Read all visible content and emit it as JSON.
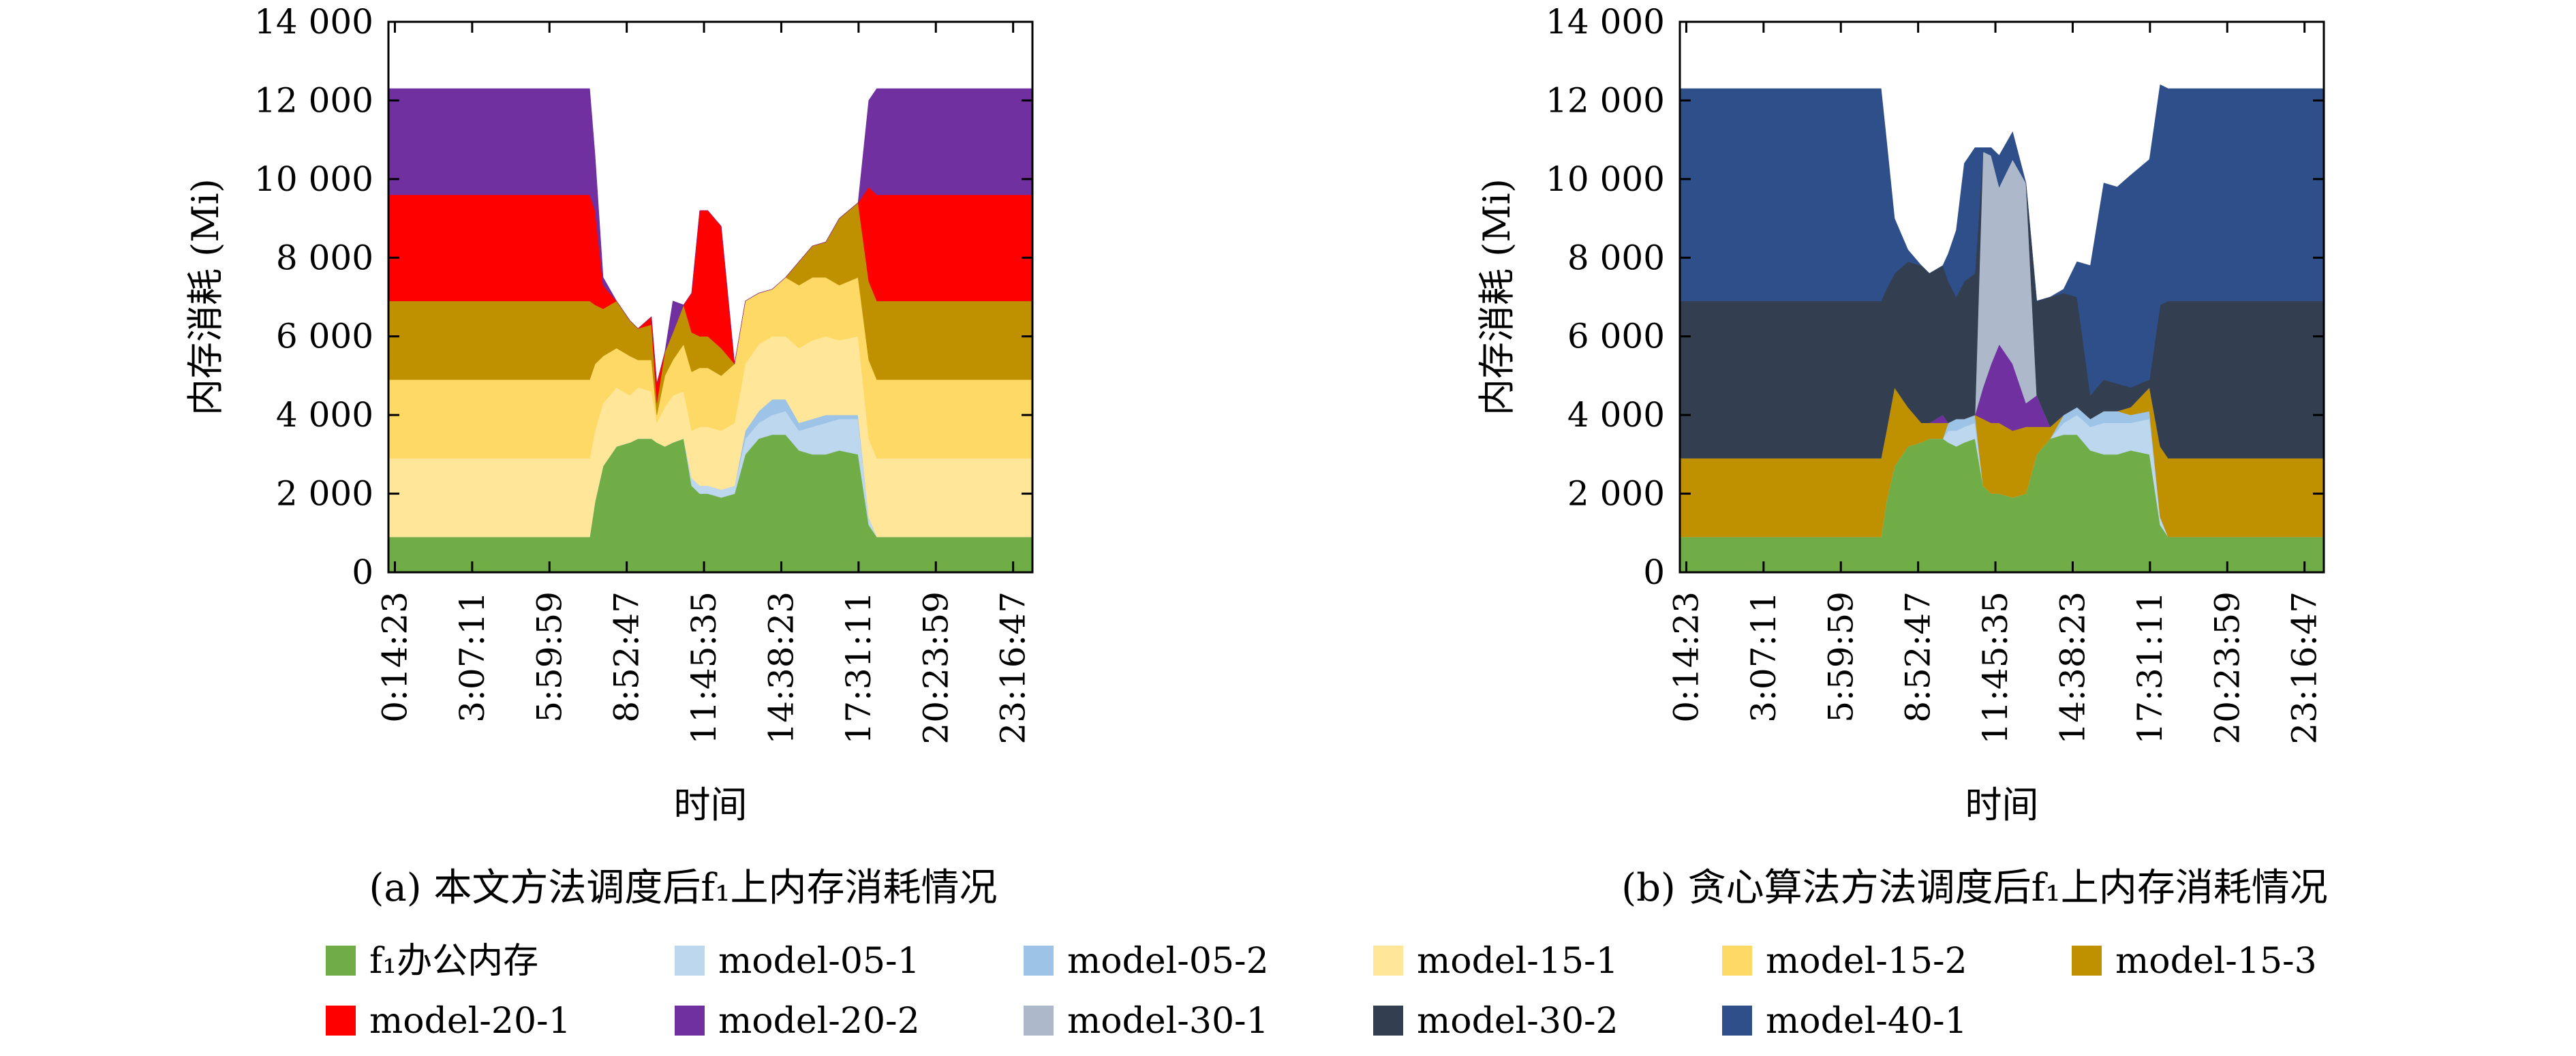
{
  "legend": [
    {
      "label": "f₁办公内存",
      "color": "#70ad47"
    },
    {
      "label": "model-05-1",
      "color": "#bdd7ee"
    },
    {
      "label": "model-05-2",
      "color": "#9dc3e6"
    },
    {
      "label": "model-15-1",
      "color": "#ffe699"
    },
    {
      "label": "model-15-2",
      "color": "#ffd966"
    },
    {
      "label": "model-15-3",
      "color": "#bf9000"
    },
    {
      "label": "model-20-1",
      "color": "#ff0000"
    },
    {
      "label": "model-20-2",
      "color": "#7030a0"
    },
    {
      "label": "model-30-1",
      "color": "#adb9ca"
    },
    {
      "label": "model-30-2",
      "color": "#333f50"
    },
    {
      "label": "model-40-1",
      "color": "#2f4f8a"
    }
  ],
  "chart_data": [
    {
      "type": "area",
      "stacked": true,
      "caption": "(a) 本文方法调度后f₁上内存消耗情况",
      "xlabel": "时间",
      "ylabel": "内存消耗 (Mi)",
      "ylim": [
        0,
        14000
      ],
      "yticks": [
        0,
        2000,
        4000,
        6000,
        8000,
        10000,
        12000,
        14000
      ],
      "ytick_labels": [
        "0",
        "2 000",
        "4 000",
        "6 000",
        "8 000",
        "10 000",
        "12 000",
        "14 000"
      ],
      "xlim": [
        0,
        24
      ],
      "xticks": [
        0.24,
        3.12,
        6.0,
        8.88,
        11.76,
        14.64,
        17.52,
        20.4,
        23.28
      ],
      "xtick_labels": [
        "0:14:23",
        "3:07:11",
        "5:59:59",
        "8:52:47",
        "11:45:35",
        "14:38:23",
        "17:31:11",
        "20:23:59",
        "23:16:47"
      ],
      "x": [
        0,
        7.5,
        7.7,
        8.0,
        8.5,
        9.0,
        9.3,
        9.8,
        10.0,
        10.3,
        10.6,
        11.0,
        11.3,
        11.6,
        11.9,
        12.4,
        12.9,
        13.3,
        13.8,
        14.3,
        14.8,
        15.3,
        15.8,
        16.3,
        16.8,
        17.5,
        17.9,
        18.2,
        24
      ],
      "series": [
        {
          "name": "f₁办公内存",
          "color": "#70ad47",
          "values": [
            900,
            900,
            1800,
            2700,
            3200,
            3300,
            3400,
            3400,
            3300,
            3200,
            3300,
            3400,
            2200,
            2000,
            2000,
            1900,
            2000,
            3000,
            3400,
            3500,
            3500,
            3100,
            3000,
            3000,
            3100,
            3000,
            1200,
            900,
            900
          ]
        },
        {
          "name": "model-05-1",
          "color": "#bdd7ee",
          "values": [
            0,
            0,
            0,
            0,
            0,
            0,
            0,
            0,
            0,
            0,
            0,
            0,
            200,
            200,
            200,
            200,
            200,
            400,
            400,
            500,
            600,
            500,
            700,
            800,
            800,
            900,
            200,
            0,
            0
          ]
        },
        {
          "name": "model-05-2",
          "color": "#9dc3e6",
          "values": [
            0,
            0,
            0,
            0,
            0,
            0,
            0,
            0,
            0,
            0,
            0,
            0,
            0,
            0,
            0,
            0,
            0,
            200,
            300,
            400,
            300,
            200,
            200,
            200,
            100,
            100,
            0,
            0,
            0
          ]
        },
        {
          "name": "model-15-1",
          "color": "#ffe699",
          "values": [
            2000,
            2000,
            1800,
            1600,
            1500,
            1200,
            1300,
            1200,
            500,
            1000,
            1200,
            1200,
            1200,
            1500,
            1500,
            1500,
            1600,
            1700,
            1700,
            1600,
            1600,
            1900,
            2000,
            2000,
            1900,
            2000,
            2000,
            2000,
            2000
          ]
        },
        {
          "name": "model-15-2",
          "color": "#ffd966",
          "values": [
            2000,
            2000,
            1700,
            1200,
            1000,
            1000,
            700,
            800,
            200,
            800,
            900,
            1200,
            1500,
            1500,
            1500,
            1400,
            1500,
            1600,
            1300,
            1200,
            1500,
            1600,
            1600,
            1500,
            1400,
            1500,
            2000,
            2000,
            2000
          ]
        },
        {
          "name": "model-15-3",
          "color": "#bf9000",
          "values": [
            2000,
            2000,
            1500,
            1200,
            1200,
            900,
            800,
            900,
            300,
            600,
            700,
            1000,
            1000,
            800,
            800,
            700,
            0,
            0,
            0,
            0,
            0,
            600,
            800,
            900,
            1700,
            1900,
            2000,
            2000,
            2000
          ]
        },
        {
          "name": "model-20-1",
          "color": "#ff0000",
          "values": [
            2700,
            2700,
            2400,
            600,
            0,
            0,
            0,
            200,
            500,
            0,
            0,
            0,
            1000,
            3200,
            3200,
            3100,
            0,
            0,
            0,
            0,
            0,
            0,
            0,
            0,
            0,
            0,
            2400,
            2700,
            2700
          ]
        },
        {
          "name": "model-20-2",
          "color": "#7030a0",
          "values": [
            2700,
            2700,
            1400,
            200,
            0,
            0,
            0,
            0,
            0,
            0,
            800,
            0,
            0,
            0,
            0,
            0,
            0,
            0,
            0,
            0,
            0,
            0,
            0,
            0,
            0,
            0,
            2200,
            2700,
            2700
          ]
        }
      ]
    },
    {
      "type": "area",
      "stacked": true,
      "caption": "(b) 贪心算法方法调度后f₁上内存消耗情况",
      "xlabel": "时间",
      "ylabel": "内存消耗 (Mi)",
      "ylim": [
        0,
        14000
      ],
      "yticks": [
        0,
        2000,
        4000,
        6000,
        8000,
        10000,
        12000,
        14000
      ],
      "ytick_labels": [
        "0",
        "2 000",
        "4 000",
        "6 000",
        "8 000",
        "10 000",
        "12 000",
        "14 000"
      ],
      "xlim": [
        0,
        24
      ],
      "xticks": [
        0.24,
        3.12,
        6.0,
        8.88,
        11.76,
        14.64,
        17.52,
        20.4,
        23.28
      ],
      "xtick_labels": [
        "0:14:23",
        "3:07:11",
        "5:59:59",
        "8:52:47",
        "11:45:35",
        "14:38:23",
        "17:31:11",
        "20:23:59",
        "23:16:47"
      ],
      "x": [
        0,
        7.5,
        7.7,
        8.0,
        8.5,
        9.0,
        9.3,
        9.8,
        10.0,
        10.3,
        10.6,
        11.0,
        11.3,
        11.6,
        11.9,
        12.4,
        12.9,
        13.3,
        13.8,
        14.3,
        14.8,
        15.3,
        15.8,
        16.3,
        16.8,
        17.5,
        17.9,
        18.2,
        24
      ],
      "series": [
        {
          "name": "f₁办公内存",
          "color": "#70ad47",
          "values": [
            900,
            900,
            1800,
            2700,
            3200,
            3300,
            3400,
            3400,
            3300,
            3200,
            3300,
            3400,
            2200,
            2000,
            2000,
            1900,
            2000,
            3000,
            3400,
            3500,
            3500,
            3100,
            3000,
            3000,
            3100,
            3000,
            1200,
            900,
            900
          ]
        },
        {
          "name": "model-05-1",
          "color": "#bdd7ee",
          "values": [
            0,
            0,
            0,
            0,
            0,
            0,
            0,
            0,
            300,
            400,
            400,
            400,
            0,
            0,
            0,
            0,
            0,
            0,
            0,
            300,
            500,
            600,
            800,
            800,
            700,
            900,
            200,
            0,
            0
          ]
        },
        {
          "name": "model-05-2",
          "color": "#9dc3e6",
          "values": [
            0,
            0,
            0,
            0,
            0,
            0,
            0,
            0,
            200,
            300,
            200,
            200,
            0,
            0,
            0,
            0,
            0,
            0,
            0,
            200,
            200,
            200,
            300,
            300,
            200,
            200,
            0,
            0,
            0
          ]
        },
        {
          "name": "model-15-3",
          "color": "#bf9000",
          "values": [
            2000,
            2000,
            1800,
            2000,
            1000,
            500,
            400,
            400,
            0,
            0,
            0,
            0,
            1700,
            1800,
            1800,
            1700,
            1700,
            700,
            300,
            0,
            0,
            0,
            0,
            0,
            200,
            600,
            1800,
            2000,
            2000
          ]
        },
        {
          "name": "model-20-2",
          "color": "#7030a0",
          "values": [
            0,
            0,
            0,
            0,
            0,
            0,
            0,
            200,
            0,
            0,
            0,
            0,
            800,
            1500,
            2000,
            1700,
            600,
            800,
            0,
            0,
            0,
            0,
            0,
            0,
            0,
            0,
            0,
            0,
            0
          ]
        },
        {
          "name": "model-30-1",
          "color": "#adb9ca",
          "values": [
            0,
            0,
            0,
            0,
            0,
            0,
            0,
            0,
            0,
            0,
            0,
            0,
            6000,
            5300,
            4000,
            5200,
            5600,
            0,
            0,
            0,
            0,
            0,
            0,
            0,
            0,
            0,
            0,
            0,
            0
          ]
        },
        {
          "name": "model-30-2",
          "color": "#333f50",
          "values": [
            4000,
            4000,
            3600,
            2900,
            3700,
            4000,
            3800,
            3800,
            3600,
            3100,
            3500,
            3600,
            0,
            0,
            0,
            0,
            0,
            2400,
            3300,
            3100,
            2800,
            600,
            800,
            700,
            500,
            200,
            3600,
            4000,
            4000
          ]
        },
        {
          "name": "model-40-1",
          "color": "#2f4f8a",
          "values": [
            5400,
            5400,
            3800,
            1400,
            300,
            0,
            0,
            0,
            700,
            1700,
            3000,
            3200,
            100,
            200,
            800,
            700,
            0,
            0,
            0,
            100,
            900,
            3300,
            5000,
            5000,
            5400,
            5600,
            5600,
            5400,
            5400
          ]
        }
      ]
    }
  ]
}
